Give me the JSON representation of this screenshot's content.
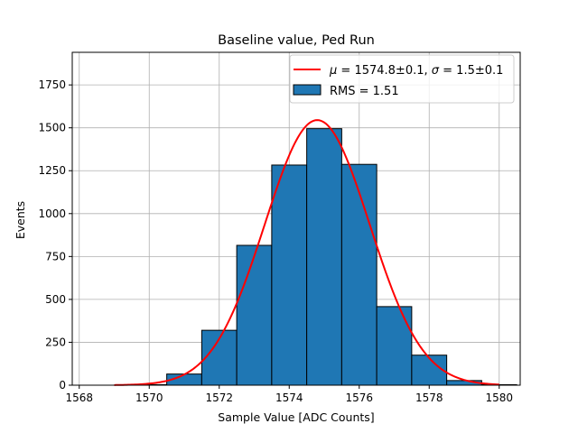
{
  "chart_data": {
    "type": "bar",
    "title": "Baseline value, Ped Run",
    "xlabel": "Sample Value [ADC Counts]",
    "ylabel": "Events",
    "xlim": [
      1567.8,
      1580.6
    ],
    "ylim": [
      0,
      1940
    ],
    "grid": true,
    "legend_position": "top-right",
    "bins": [
      {
        "x0": 1569.5,
        "x1": 1570.5,
        "value": 3
      },
      {
        "x0": 1570.5,
        "x1": 1571.5,
        "value": 65
      },
      {
        "x0": 1571.5,
        "x1": 1572.5,
        "value": 320
      },
      {
        "x0": 1572.5,
        "x1": 1573.5,
        "value": 815
      },
      {
        "x0": 1573.5,
        "x1": 1574.5,
        "value": 1283
      },
      {
        "x0": 1574.5,
        "x1": 1575.5,
        "value": 1495
      },
      {
        "x0": 1575.5,
        "x1": 1576.5,
        "value": 1287
      },
      {
        "x0": 1576.5,
        "x1": 1577.5,
        "value": 458
      },
      {
        "x0": 1577.5,
        "x1": 1578.5,
        "value": 175
      },
      {
        "x0": 1578.5,
        "x1": 1579.5,
        "value": 27
      },
      {
        "x0": 1579.5,
        "x1": 1580.5,
        "value": 3
      }
    ],
    "fit": {
      "mu": 1574.8,
      "sigma": 1.5,
      "amplitude": 1545,
      "x_range": [
        1569,
        1580
      ]
    },
    "xticks": [
      1568,
      1570,
      1572,
      1574,
      1576,
      1578,
      1580
    ],
    "yticks": [
      0,
      250,
      500,
      750,
      1000,
      1250,
      1500,
      1750
    ],
    "legend": [
      {
        "kind": "line",
        "label_prefix": "μ",
        "label_mid": " = 1574.8±0.1, ",
        "label_sigma": "σ",
        "label_suffix": " = 1.5±0.1",
        "color": "#ff0000"
      },
      {
        "kind": "patch",
        "label": "RMS = 1.51",
        "color": "#1f77b4"
      }
    ],
    "colors": {
      "bar": "#1f77b4",
      "bar_edge": "#000000",
      "fit": "#ff0000",
      "grid": "#b0b0b0"
    }
  }
}
